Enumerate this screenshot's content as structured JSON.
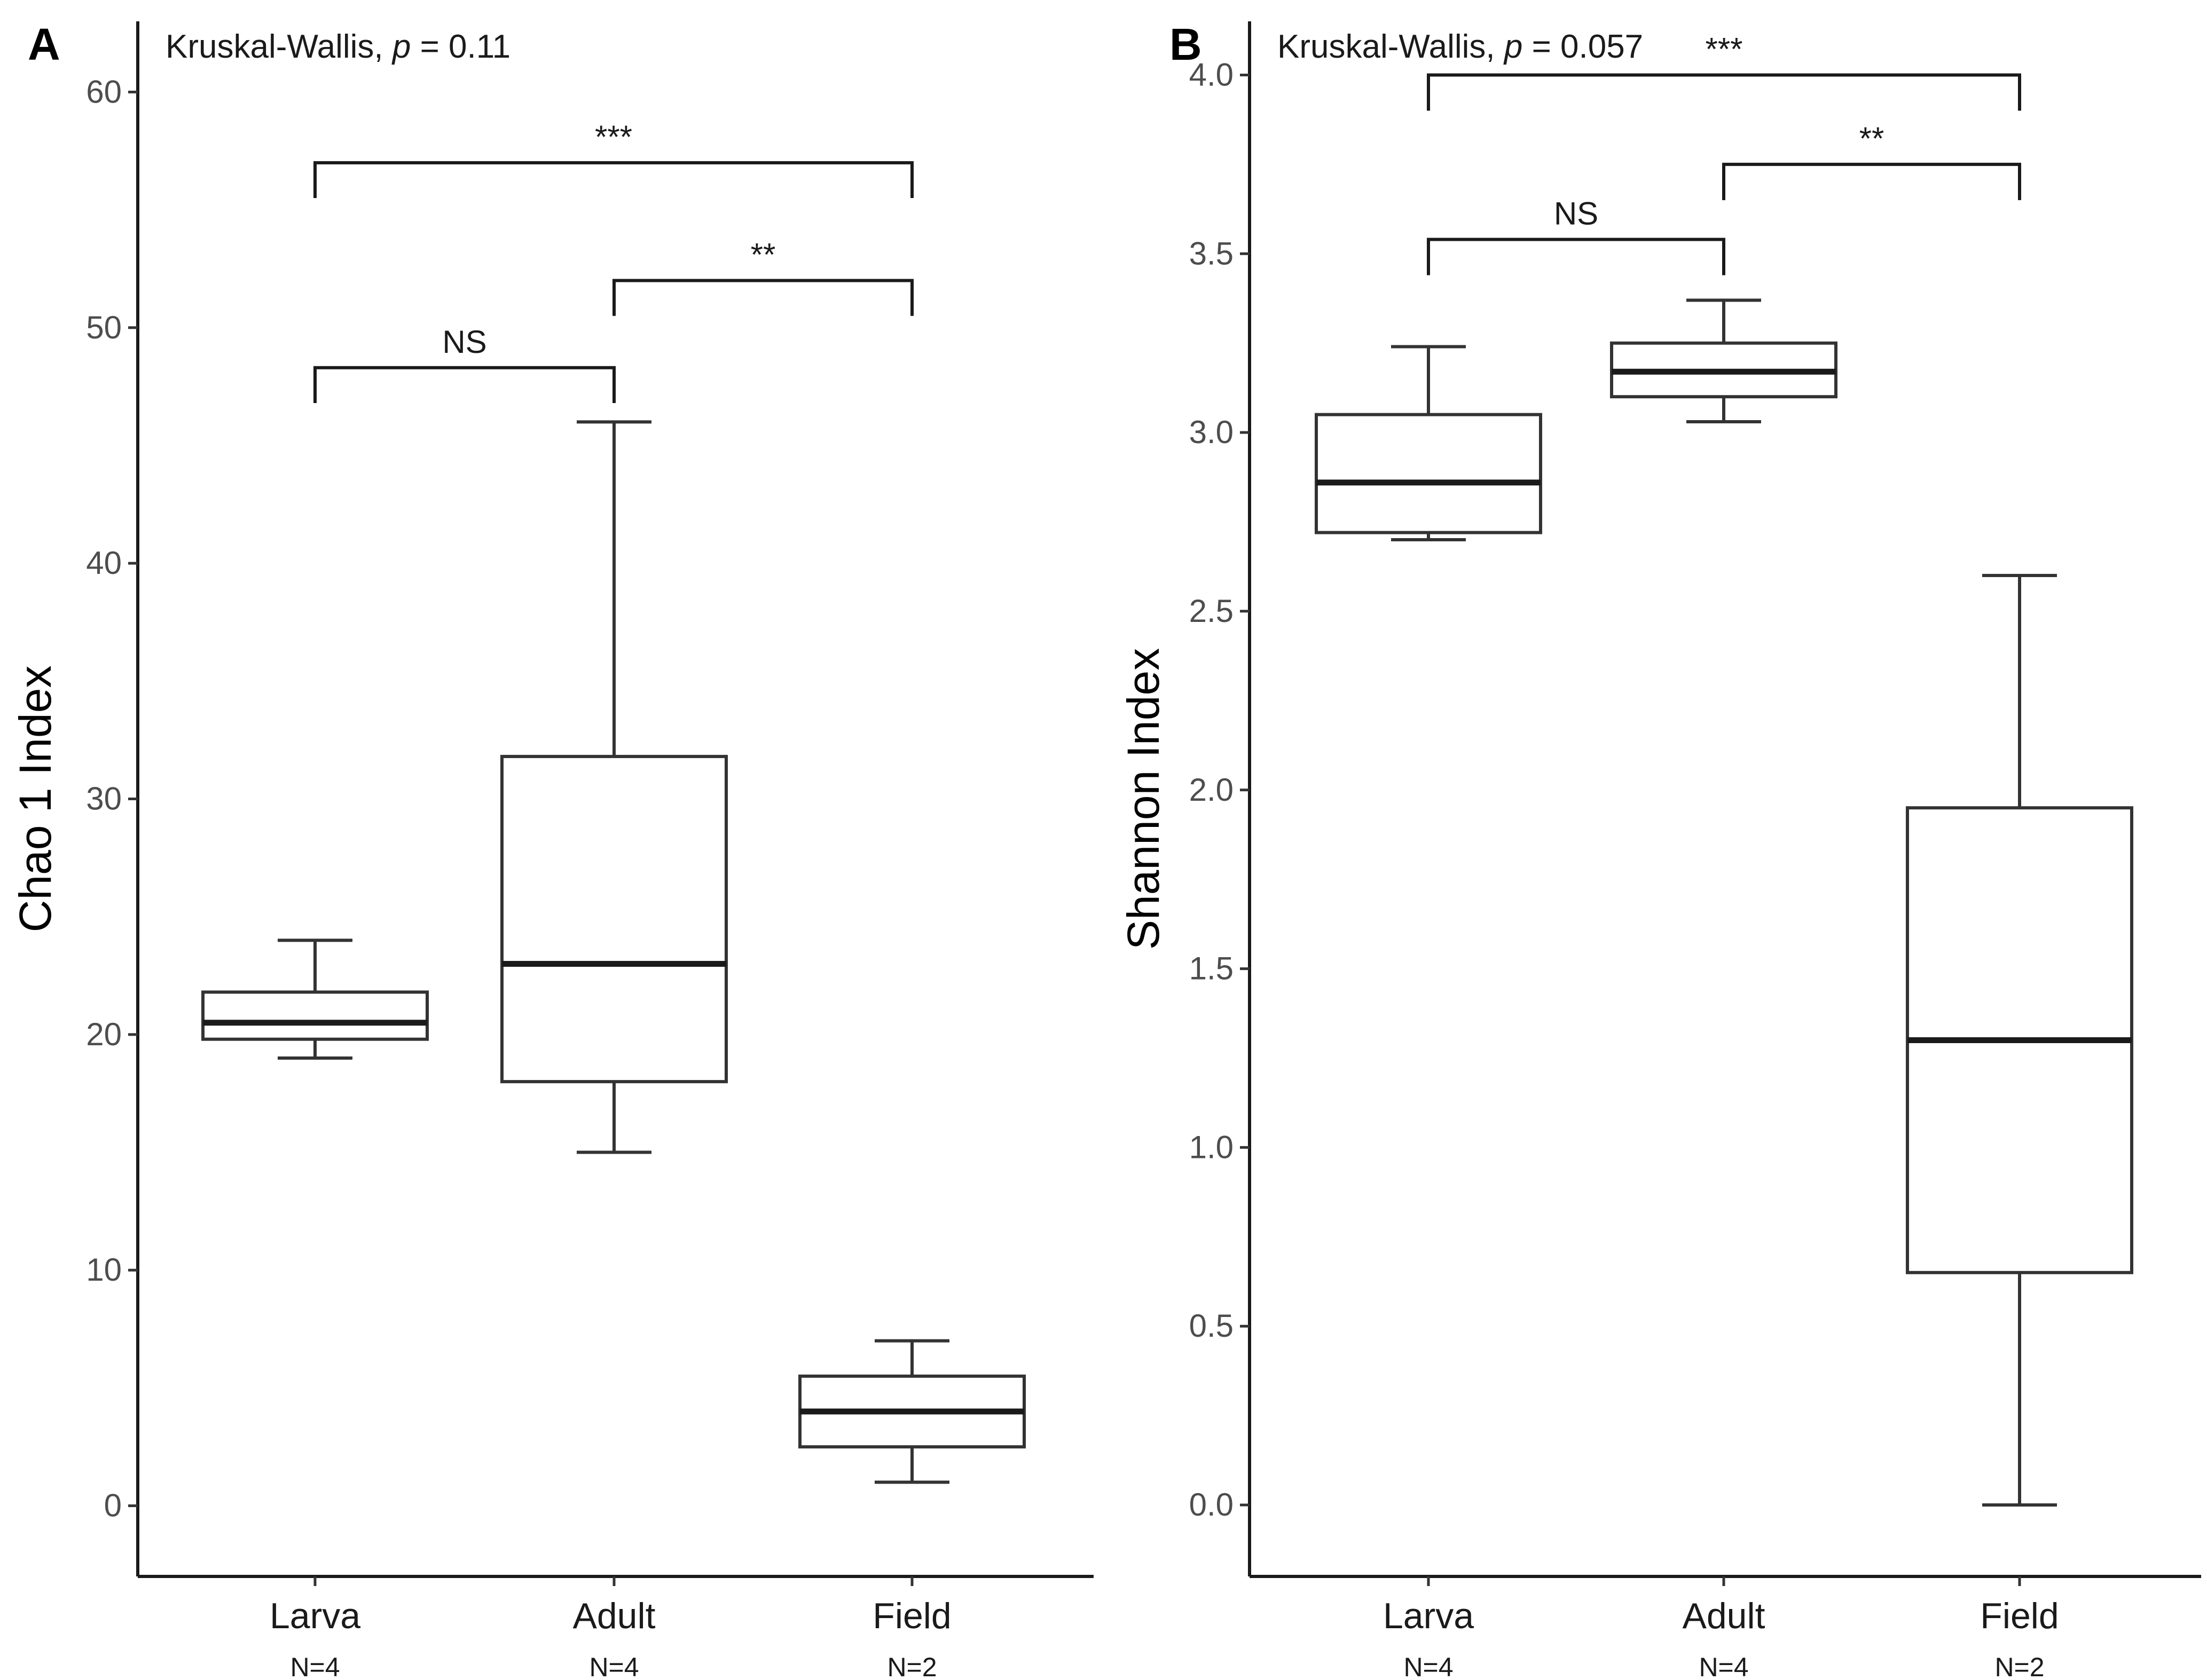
{
  "chart_data": [
    {
      "type": "box",
      "panel_label": "A",
      "ylabel": "Chao 1 Index",
      "ylim": [
        -3,
        63
      ],
      "yticks": [
        0,
        10,
        20,
        30,
        40,
        50,
        60
      ],
      "ytick_labels": [
        "0",
        "10",
        "20",
        "30",
        "40",
        "50",
        "60"
      ],
      "test_text_prefix": "Kruskal-Wallis,",
      "test_text_p": "p",
      "test_text_value": "= 0.11",
      "categories": [
        "Larva",
        "Adult",
        "Field"
      ],
      "n_labels": [
        "N=4",
        "N=4",
        "N=2"
      ],
      "boxes": [
        {
          "category": "Larva",
          "min": 19,
          "q1": 19.8,
          "median": 20.5,
          "q3": 21.8,
          "max": 24
        },
        {
          "category": "Adult",
          "min": 15,
          "q1": 18,
          "median": 23,
          "q3": 31.8,
          "max": 46
        },
        {
          "category": "Field",
          "min": 1,
          "q1": 2.5,
          "median": 4,
          "q3": 5.5,
          "max": 7
        }
      ],
      "comparisons": [
        {
          "from": 0,
          "to": 1,
          "label": "NS",
          "y": 48.3,
          "drop": 1.5
        },
        {
          "from": 1,
          "to": 2,
          "label": "**",
          "y": 52,
          "drop": 1.5
        },
        {
          "from": 0,
          "to": 2,
          "label": "***",
          "y": 57,
          "drop": 1.5
        }
      ]
    },
    {
      "type": "box",
      "panel_label": "B",
      "ylabel": "Shannon Index",
      "ylim": [
        -0.2,
        4.15
      ],
      "yticks": [
        0,
        0.5,
        1,
        1.5,
        2,
        2.5,
        3,
        3.5,
        4
      ],
      "ytick_labels": [
        "0.0",
        "0.5",
        "1.0",
        "1.5",
        "2.0",
        "2.5",
        "3.0",
        "3.5",
        "4.0"
      ],
      "test_text_prefix": "Kruskal-Wallis,",
      "test_text_p": "p",
      "test_text_value": "= 0.057",
      "categories": [
        "Larva",
        "Adult",
        "Field"
      ],
      "n_labels": [
        "N=4",
        "N=4",
        "N=2"
      ],
      "boxes": [
        {
          "category": "Larva",
          "min": 2.7,
          "q1": 2.72,
          "median": 2.86,
          "q3": 3.05,
          "max": 3.24
        },
        {
          "category": "Adult",
          "min": 3.03,
          "q1": 3.1,
          "median": 3.17,
          "q3": 3.25,
          "max": 3.37
        },
        {
          "category": "Field",
          "min": 0,
          "q1": 0.65,
          "median": 1.3,
          "q3": 1.95,
          "max": 2.6
        }
      ],
      "comparisons": [
        {
          "from": 0,
          "to": 1,
          "label": "NS",
          "y": 3.54,
          "drop": 0.1
        },
        {
          "from": 1,
          "to": 2,
          "label": "**",
          "y": 3.75,
          "drop": 0.1
        },
        {
          "from": 0,
          "to": 2,
          "label": "***",
          "y": 4.0,
          "drop": 0.1
        }
      ]
    }
  ]
}
